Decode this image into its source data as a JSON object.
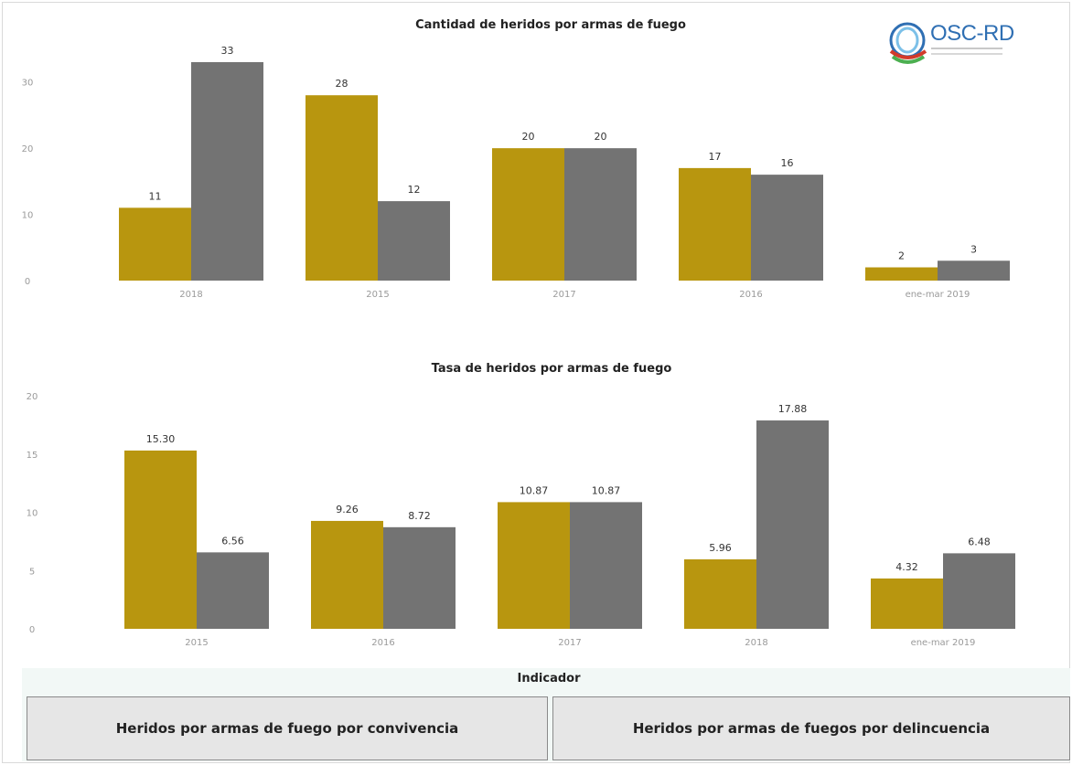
{
  "colors": {
    "series1": "#b8960f",
    "series2": "#737373"
  },
  "logo": {
    "text": "OSC-RD",
    "icon": "osc-rd-logo-icon"
  },
  "indicator": {
    "title": "Indicador",
    "options": [
      "Heridos por armas de fuego por convivencia",
      "Heridos por armas de fuegos por delincuencia"
    ]
  },
  "chart_data": [
    {
      "type": "bar",
      "title": "Cantidad de  heridos por armas de fuego",
      "categories": [
        "2018",
        "2015",
        "2017",
        "2016",
        "ene-mar 2019"
      ],
      "series": [
        {
          "values": [
            11,
            28,
            20,
            17,
            2
          ],
          "color": "#b8960f"
        },
        {
          "values": [
            33,
            12,
            20,
            16,
            3
          ],
          "color": "#737373"
        }
      ],
      "value_labels": [
        [
          "11",
          "28",
          "20",
          "17",
          "2"
        ],
        [
          "33",
          "12",
          "20",
          "16",
          "3"
        ]
      ],
      "ylim": [
        0,
        33
      ],
      "yticks": [
        "0",
        "10",
        "20",
        "30"
      ],
      "xlabel": "",
      "ylabel": "",
      "grid": false
    },
    {
      "type": "bar",
      "title": "Tasa de heridos por armas de fuego",
      "categories": [
        "2015",
        "2016",
        "2017",
        "2018",
        "ene-mar 2019"
      ],
      "series": [
        {
          "values": [
            15.3,
            9.26,
            10.87,
            5.96,
            4.32
          ],
          "color": "#b8960f"
        },
        {
          "values": [
            6.56,
            8.72,
            10.87,
            17.88,
            6.48
          ],
          "color": "#737373"
        }
      ],
      "value_labels": [
        [
          "15.30",
          "9.26",
          "10.87",
          "5.96",
          "4.32"
        ],
        [
          "6.56",
          "8.72",
          "10.87",
          "17.88",
          "6.48"
        ]
      ],
      "ylim": [
        0,
        20
      ],
      "yticks": [
        "0",
        "5",
        "10",
        "15",
        "20"
      ],
      "xlabel": "",
      "ylabel": "",
      "grid": false
    }
  ]
}
